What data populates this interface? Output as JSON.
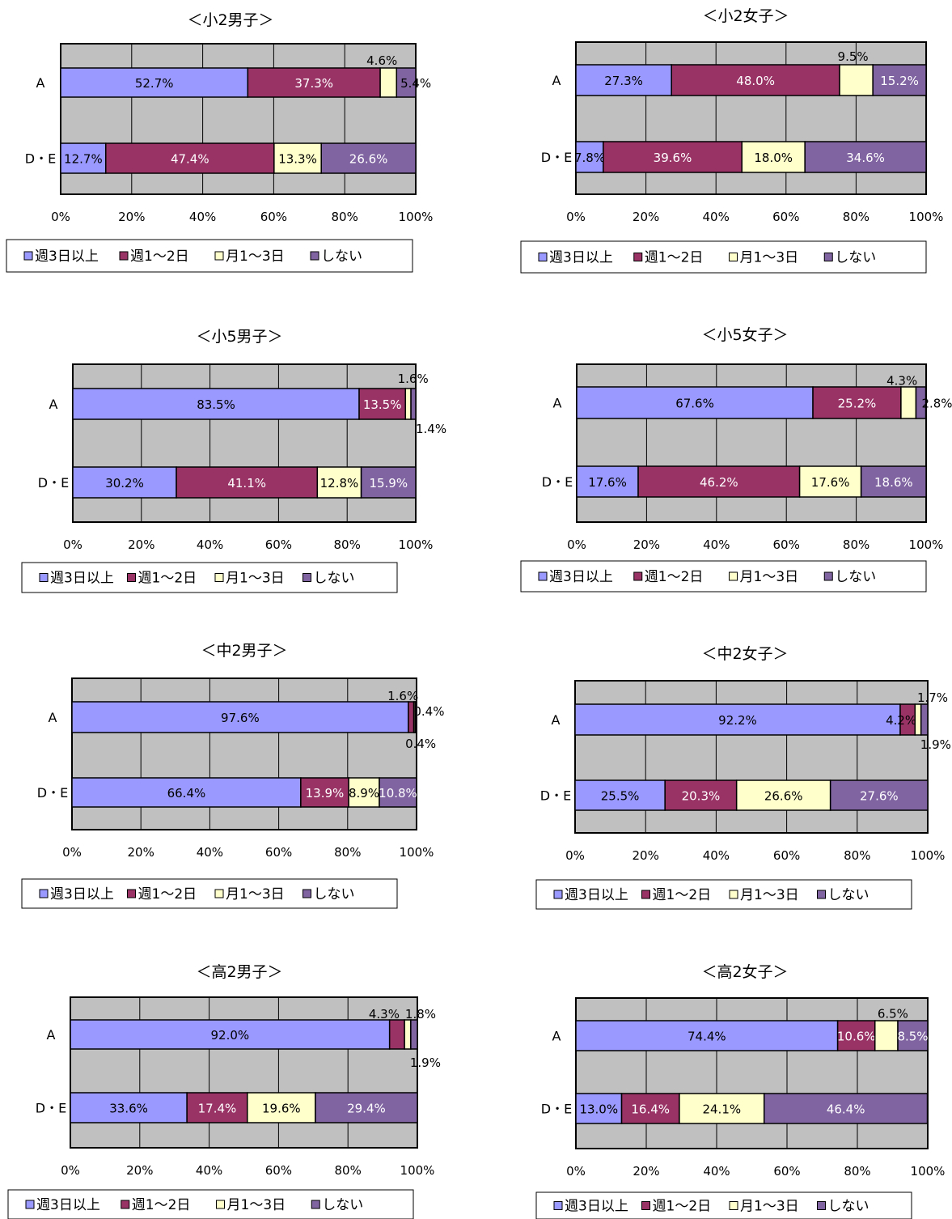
{
  "chart_data": [
    {
      "type": "bar",
      "stacked": true,
      "horizontal": true,
      "title": "＜小2男子＞",
      "categories": [
        "A",
        "D・E"
      ],
      "series": [
        {
          "name": "週3日以上",
          "values": [
            52.7,
            12.7
          ]
        },
        {
          "name": "週1～2日",
          "values": [
            37.3,
            47.4
          ]
        },
        {
          "name": "月1～3日",
          "values": [
            4.6,
            13.3
          ]
        },
        {
          "name": "しない",
          "values": [
            5.4,
            26.6
          ]
        }
      ],
      "data_labels": [
        [
          "52.7%",
          "37.3%",
          "4.6%",
          "5.4%"
        ],
        [
          "12.7%",
          "47.4%",
          "13.3%",
          "26.6%"
        ]
      ],
      "xlim": [
        0,
        100
      ],
      "xticks": [
        "0%",
        "20%",
        "40%",
        "60%",
        "80%",
        "100%"
      ],
      "grid": true,
      "legend": "bottom"
    },
    {
      "type": "bar",
      "stacked": true,
      "horizontal": true,
      "title": "＜小2女子＞",
      "categories": [
        "A",
        "D・E"
      ],
      "series": [
        {
          "name": "週3日以上",
          "values": [
            27.3,
            7.8
          ]
        },
        {
          "name": "週1～2日",
          "values": [
            48.0,
            39.6
          ]
        },
        {
          "name": "月1～3日",
          "values": [
            9.5,
            18.0
          ]
        },
        {
          "name": "しない",
          "values": [
            15.2,
            34.6
          ]
        }
      ],
      "data_labels": [
        [
          "27.3%",
          "48.0%",
          "9.5%",
          "15.2%"
        ],
        [
          "7.8%",
          "39.6%",
          "18.0%",
          "34.6%"
        ]
      ],
      "xlim": [
        0,
        100
      ],
      "xticks": [
        "0%",
        "20%",
        "40%",
        "60%",
        "80%",
        "100%"
      ],
      "grid": true,
      "legend": "bottom"
    },
    {
      "type": "bar",
      "stacked": true,
      "horizontal": true,
      "title": "＜小5男子＞",
      "categories": [
        "A",
        "D・E"
      ],
      "series": [
        {
          "name": "週3日以上",
          "values": [
            83.5,
            30.2
          ]
        },
        {
          "name": "週1～2日",
          "values": [
            13.5,
            41.1
          ]
        },
        {
          "name": "月1～3日",
          "values": [
            1.6,
            12.8
          ]
        },
        {
          "name": "しない",
          "values": [
            1.4,
            15.9
          ]
        }
      ],
      "data_labels": [
        [
          "83.5%",
          "13.5%",
          "1.6%",
          "1.4%"
        ],
        [
          "30.2%",
          "41.1%",
          "12.8%",
          "15.9%"
        ]
      ],
      "xlim": [
        0,
        100
      ],
      "xticks": [
        "0%",
        "20%",
        "40%",
        "60%",
        "80%",
        "100%"
      ],
      "grid": true,
      "legend": "bottom"
    },
    {
      "type": "bar",
      "stacked": true,
      "horizontal": true,
      "title": "＜小5女子＞",
      "categories": [
        "A",
        "D・E"
      ],
      "series": [
        {
          "name": "週3日以上",
          "values": [
            67.6,
            17.6
          ]
        },
        {
          "name": "週1～2日",
          "values": [
            25.2,
            46.2
          ]
        },
        {
          "name": "月1～3日",
          "values": [
            4.3,
            17.6
          ]
        },
        {
          "name": "しない",
          "values": [
            2.8,
            18.6
          ]
        }
      ],
      "data_labels": [
        [
          "67.6%",
          "25.2%",
          "4.3%",
          "2.8%"
        ],
        [
          "17.6%",
          "46.2%",
          "17.6%",
          "18.6%"
        ]
      ],
      "xlim": [
        0,
        100
      ],
      "xticks": [
        "0%",
        "20%",
        "40%",
        "60%",
        "80%",
        "100%"
      ],
      "grid": true,
      "legend": "bottom"
    },
    {
      "type": "bar",
      "stacked": true,
      "horizontal": true,
      "title": "＜中2男子＞",
      "categories": [
        "A",
        "D・E"
      ],
      "series": [
        {
          "name": "週3日以上",
          "values": [
            97.6,
            66.4
          ]
        },
        {
          "name": "週1～2日",
          "values": [
            1.6,
            13.9
          ]
        },
        {
          "name": "月1～3日",
          "values": [
            0.4,
            8.9
          ]
        },
        {
          "name": "しない",
          "values": [
            0.4,
            10.8
          ]
        }
      ],
      "data_labels": [
        [
          "97.6%",
          "1.6%",
          "0.4%",
          "0.4%"
        ],
        [
          "66.4%",
          "13.9%",
          "8.9%",
          "10.8%"
        ]
      ],
      "xlim": [
        0,
        100
      ],
      "xticks": [
        "0%",
        "20%",
        "40%",
        "60%",
        "80%",
        "100%"
      ],
      "grid": true,
      "legend": "bottom"
    },
    {
      "type": "bar",
      "stacked": true,
      "horizontal": true,
      "title": "＜中2女子＞",
      "categories": [
        "A",
        "D・E"
      ],
      "series": [
        {
          "name": "週3日以上",
          "values": [
            92.2,
            25.5
          ]
        },
        {
          "name": "週1～2日",
          "values": [
            4.2,
            20.3
          ]
        },
        {
          "name": "月1～3日",
          "values": [
            1.7,
            26.6
          ]
        },
        {
          "name": "しない",
          "values": [
            1.9,
            27.6
          ]
        }
      ],
      "data_labels": [
        [
          "92.2%",
          "4.2%",
          "1.7%",
          "1.9%"
        ],
        [
          "25.5%",
          "20.3%",
          "26.6%",
          "27.6%"
        ]
      ],
      "xlim": [
        0,
        100
      ],
      "xticks": [
        "0%",
        "20%",
        "40%",
        "60%",
        "80%",
        "100%"
      ],
      "grid": true,
      "legend": "bottom"
    },
    {
      "type": "bar",
      "stacked": true,
      "horizontal": true,
      "title": "＜高2男子＞",
      "categories": [
        "A",
        "D・E"
      ],
      "series": [
        {
          "name": "週3日以上",
          "values": [
            92.0,
            33.6
          ]
        },
        {
          "name": "週1～2日",
          "values": [
            4.3,
            17.4
          ]
        },
        {
          "name": "月1～3日",
          "values": [
            1.8,
            19.6
          ]
        },
        {
          "name": "しない",
          "values": [
            1.9,
            29.4
          ]
        }
      ],
      "data_labels": [
        [
          "92.0%",
          "4.3%",
          "1.8%",
          "1.9%"
        ],
        [
          "33.6%",
          "17.4%",
          "19.6%",
          "29.4%"
        ]
      ],
      "xlim": [
        0,
        100
      ],
      "xticks": [
        "0%",
        "20%",
        "40%",
        "60%",
        "80%",
        "100%"
      ],
      "grid": true,
      "legend": "bottom"
    },
    {
      "type": "bar",
      "stacked": true,
      "horizontal": true,
      "title": "＜高2女子＞",
      "categories": [
        "A",
        "D・E"
      ],
      "series": [
        {
          "name": "週3日以上",
          "values": [
            74.4,
            13.0
          ]
        },
        {
          "name": "週1～2日",
          "values": [
            10.6,
            16.4
          ]
        },
        {
          "name": "月1～3日",
          "values": [
            6.5,
            24.1
          ]
        },
        {
          "name": "しない",
          "values": [
            8.5,
            46.4
          ]
        }
      ],
      "data_labels": [
        [
          "74.4%",
          "10.6%",
          "6.5%",
          "8.5%"
        ],
        [
          "13.0%",
          "16.4%",
          "24.1%",
          "46.4%"
        ]
      ],
      "xlim": [
        0,
        100
      ],
      "xticks": [
        "0%",
        "20%",
        "40%",
        "60%",
        "80%",
        "100%"
      ],
      "grid": true,
      "legend": "bottom"
    }
  ],
  "colors": {
    "series": [
      "#9999ff",
      "#993366",
      "#ffffcc",
      "#8064a2"
    ],
    "plot_background": "#c0c0c0",
    "label_light": "#ffffff",
    "label_dark": "#000000"
  }
}
